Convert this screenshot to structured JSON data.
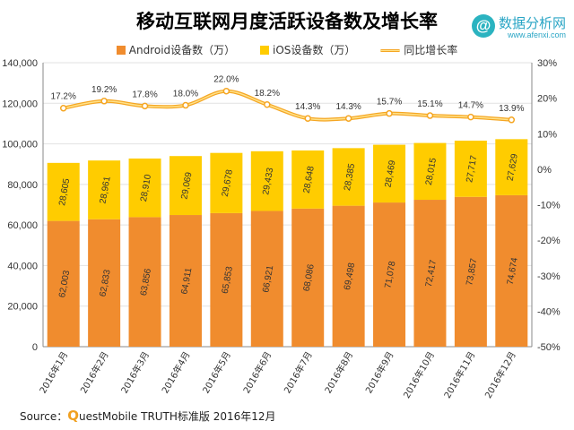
{
  "header": {
    "title": "移动互联网月度活跃设备数及增长率"
  },
  "logo": {
    "mark": "@",
    "name": "数据分析网",
    "url": "www.afenxi.com"
  },
  "footer": {
    "source_label": "Source：",
    "source_q": "Q",
    "source_text": "uestMobile TRUTH标准版 2016年12月"
  },
  "colors": {
    "android": "#f08c2e",
    "ios": "#ffcc00",
    "growth_line": "#f5a623",
    "growth_line_inner": "#ffe28a",
    "axis": "#888888",
    "grid": "#e2e2e2"
  },
  "chart_data": {
    "type": "bar",
    "stacked": true,
    "title": "移动互联网月度活跃设备数及增长率",
    "categories": [
      "2016年1月",
      "2016年2月",
      "2016年3月",
      "2016年4月",
      "2016年5月",
      "2016年6月",
      "2016年7月",
      "2016年8月",
      "2016年9月",
      "2016年10月",
      "2016年11月",
      "2016年12月"
    ],
    "series": [
      {
        "name": "Android设备数（万）",
        "type": "bar",
        "axis": "left",
        "values": [
          62003,
          62833,
          63856,
          64911,
          65853,
          66921,
          68086,
          69498,
          71078,
          72417,
          73857,
          74674
        ],
        "labels": [
          "62,003",
          "62,833",
          "63,856",
          "64,911",
          "65,853",
          "66,921",
          "68,086",
          "69,498",
          "71,078",
          "72,417",
          "73,857",
          "74,674"
        ]
      },
      {
        "name": "iOS设备数（万）",
        "type": "bar",
        "axis": "left",
        "values": [
          28605,
          28961,
          28910,
          29069,
          29678,
          29433,
          28648,
          28385,
          28469,
          28015,
          27717,
          27629
        ],
        "labels": [
          "28,605",
          "28,961",
          "28,910",
          "29,069",
          "29,678",
          "29,433",
          "28,648",
          "28,385",
          "28,469",
          "28,015",
          "27,717",
          "27,629"
        ]
      },
      {
        "name": "同比增长率",
        "type": "line",
        "axis": "right",
        "values": [
          17.2,
          19.2,
          17.8,
          18.0,
          22.0,
          18.2,
          14.3,
          14.3,
          15.7,
          15.1,
          14.7,
          13.9
        ],
        "labels": [
          "17.2%",
          "19.2%",
          "17.8%",
          "18.0%",
          "22.0%",
          "18.2%",
          "14.3%",
          "14.3%",
          "15.7%",
          "15.1%",
          "14.7%",
          "13.9%"
        ]
      }
    ],
    "ylim_left": [
      0,
      140000
    ],
    "yticks_left": [
      "0",
      "20,000",
      "40,000",
      "60,000",
      "80,000",
      "100,000",
      "120,000",
      "140,000"
    ],
    "ylim_right": [
      -50,
      30
    ],
    "yticks_right": [
      "-50%",
      "-40%",
      "-30%",
      "-20%",
      "-10%",
      "0%",
      "10%",
      "20%",
      "30%"
    ],
    "grid": true,
    "legend": "top-center"
  }
}
